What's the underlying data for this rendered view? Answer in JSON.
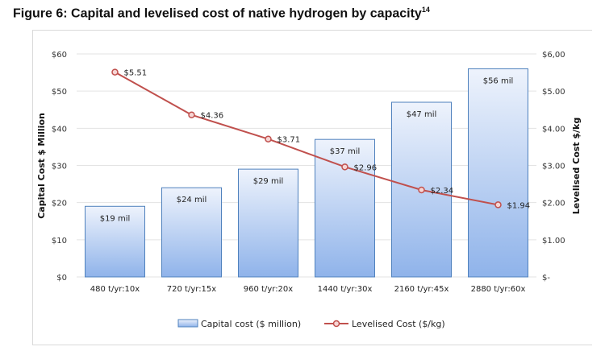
{
  "title": "Figure 6: Capital and levelised cost of native hydrogen by capacity",
  "title_sup": "14",
  "chart_data": {
    "type": "bar+line",
    "categories": [
      "480 t/yr:10x",
      "720 t/yr:15x",
      "960 t/yr:20x",
      "1440 t/yr:30x",
      "2160 t/yr:45x",
      "2880 t/yr:60x"
    ],
    "series": [
      {
        "name": "Capital cost ($ million)",
        "type": "bar",
        "axis": "left",
        "values": [
          19,
          24,
          29,
          37,
          47,
          56
        ],
        "labels": [
          "$19 mil",
          "$24 mil",
          "$29 mil",
          "$37 mil",
          "$47 mil",
          "$56 mil"
        ],
        "color": "#8fb3ea"
      },
      {
        "name": "Levelised Cost ($/kg)",
        "type": "line",
        "axis": "right",
        "values": [
          5.51,
          4.36,
          3.71,
          2.96,
          2.34,
          1.94
        ],
        "labels": [
          "$5.51",
          "$4.36",
          "$3.71",
          "$2.96",
          "$2.34",
          "$1.94"
        ],
        "color": "#c0504d"
      }
    ],
    "ylabel_left": "Capital Cost $ Million",
    "ylabel_right": "Levelised Cost $/kg",
    "ylim_left": [
      0,
      60
    ],
    "ylim_right": [
      0,
      6
    ],
    "yticks_left": [
      "$0",
      "$10",
      "$20",
      "$30",
      "$40",
      "$50",
      "$60"
    ],
    "yticks_right": [
      "$-",
      "$1.00",
      "$2.00",
      "$3.00",
      "$4.00",
      "$5.00",
      "$6,00"
    ],
    "grid": true,
    "legend": "bottom"
  }
}
